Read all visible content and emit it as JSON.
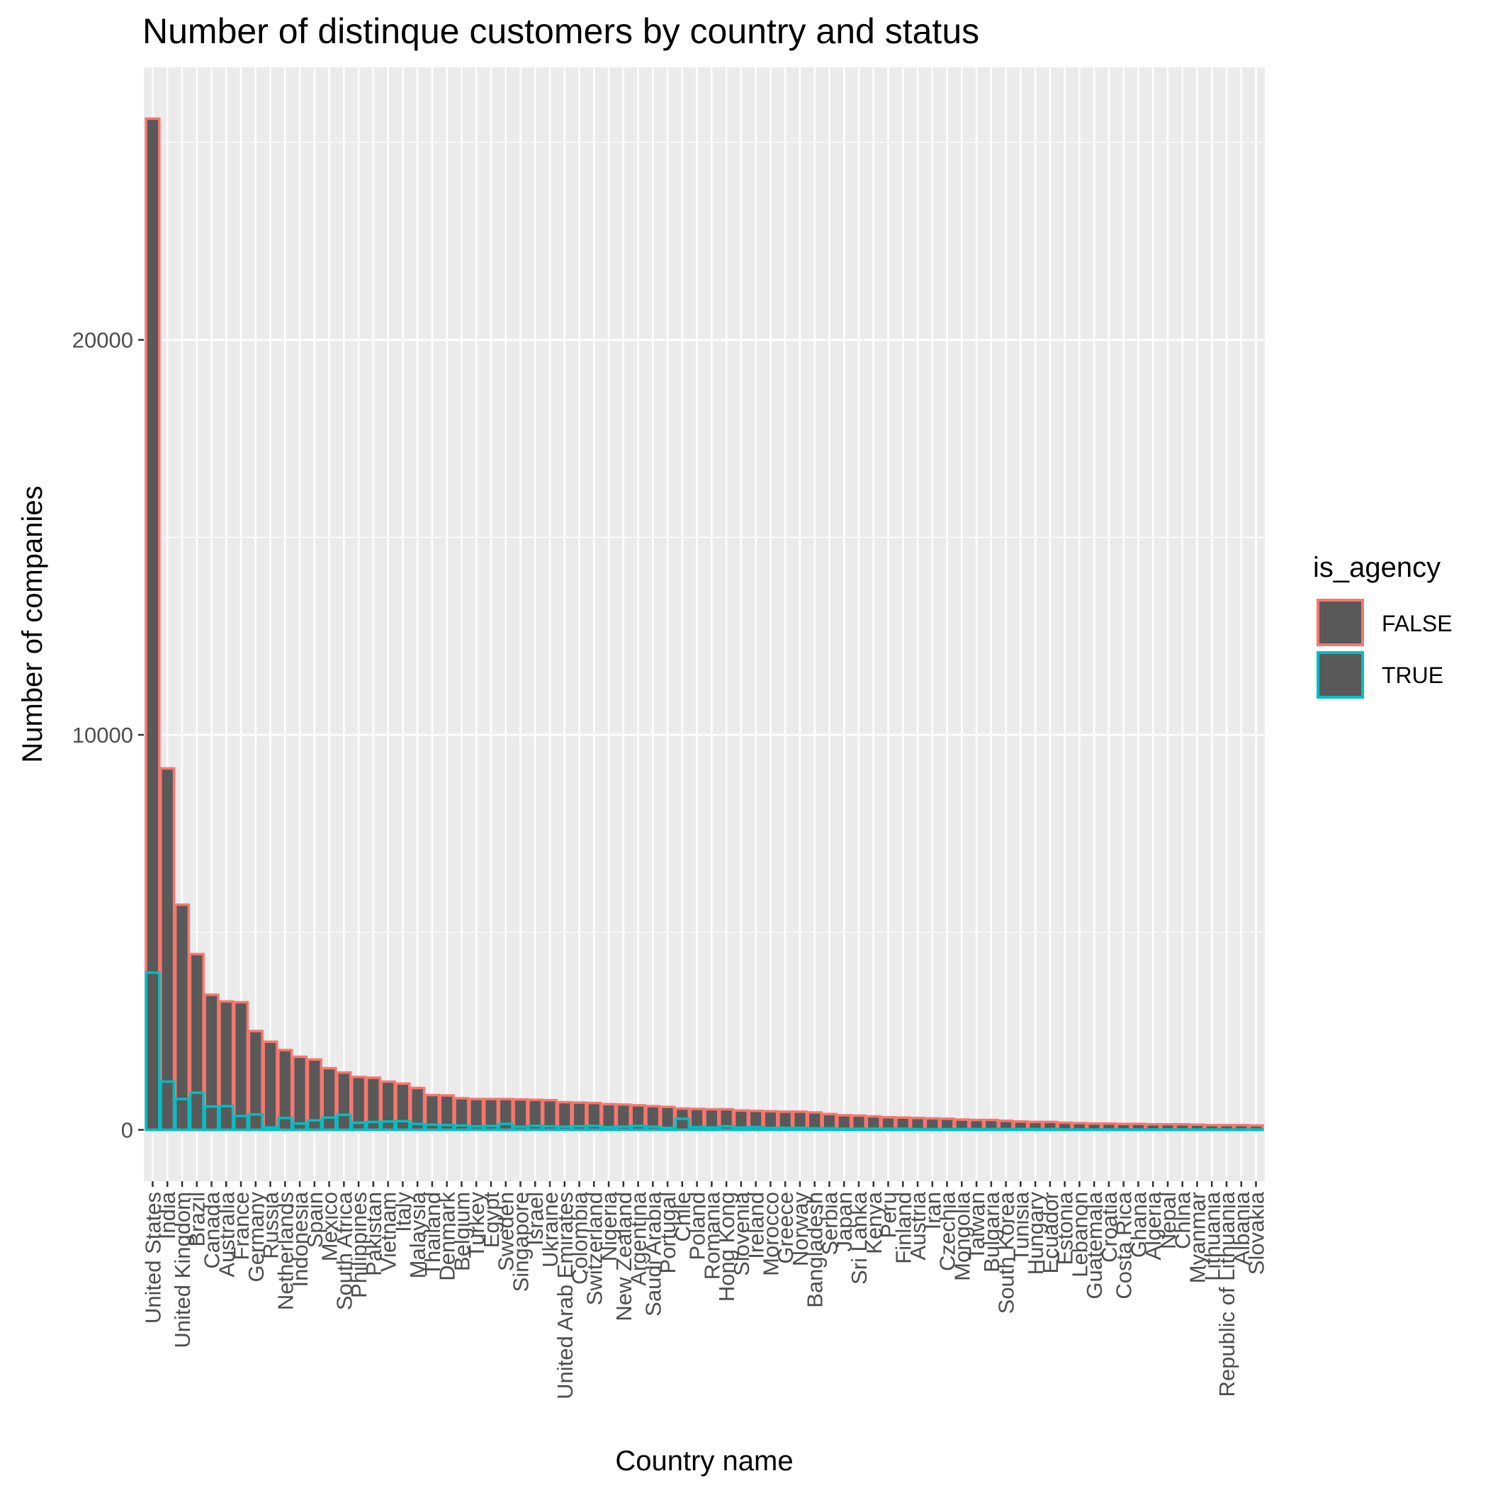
{
  "chart_data": {
    "type": "bar",
    "title": "Number of distinque customers by country and status",
    "xlabel": "Country name",
    "ylabel": "Number of companies",
    "ylim": [
      -1300,
      26900
    ],
    "yticks": [
      0,
      10000,
      20000
    ],
    "grid": true,
    "legend_position": "right",
    "legend_title": "is_agency",
    "categories": [
      "United States",
      "India",
      "United Kingdom",
      "Brazil",
      "Canada",
      "Australia",
      "France",
      "Germany",
      "Russia",
      "Netherlands",
      "Indonesia",
      "Spain",
      "Mexico",
      "South Africa",
      "Philippines",
      "Pakistan",
      "Vietnam",
      "Italy",
      "Malaysia",
      "Thailand",
      "Denmark",
      "Belgium",
      "Turkey",
      "Egypt",
      "Sweden",
      "Singapore",
      "Israel",
      "Ukraine",
      "United Arab Emirates",
      "Colombia",
      "Switzerland",
      "Nigeria",
      "New Zealand",
      "Argentina",
      "Saudi Arabia",
      "Portugal",
      "Chile",
      "Poland",
      "Romania",
      "Hong Kong",
      "Slovenia",
      "Ireland",
      "Morocco",
      "Greece",
      "Norway",
      "Bangladesh",
      "Serbia",
      "Japan",
      "Sri Lanka",
      "Kenya",
      "Peru",
      "Finland",
      "Austria",
      "Iran",
      "Czechia",
      "Mongolia",
      "Taiwan",
      "Bulgaria",
      "South Korea",
      "Tunisia",
      "Hungary",
      "Ecuador",
      "Estonia",
      "Lebanon",
      "Guatemala",
      "Croatia",
      "Costa Rica",
      "Ghana",
      "Algeria",
      "Nepal",
      "China",
      "Myanmar",
      "Lithuania",
      "Republic of Lithuania",
      "Albania",
      "Slovakia"
    ],
    "series": [
      {
        "name": "FALSE",
        "color": "#F8766D",
        "values": [
          25600,
          9150,
          5700,
          4450,
          3420,
          3250,
          3230,
          2500,
          2230,
          2020,
          1850,
          1780,
          1560,
          1450,
          1340,
          1320,
          1220,
          1170,
          1060,
          880,
          870,
          800,
          780,
          780,
          780,
          770,
          760,
          750,
          700,
          690,
          680,
          650,
          640,
          620,
          600,
          580,
          540,
          530,
          520,
          520,
          490,
          480,
          470,
          460,
          460,
          440,
          400,
          370,
          360,
          340,
          320,
          310,
          300,
          290,
          280,
          260,
          250,
          250,
          230,
          210,
          200,
          200,
          180,
          170,
          160,
          160,
          150,
          150,
          140,
          140,
          140,
          130,
          120,
          120,
          120,
          110
        ]
      },
      {
        "name": "TRUE",
        "color": "#00BFC4",
        "values": [
          3980,
          1220,
          780,
          940,
          590,
          600,
          350,
          390,
          60,
          300,
          160,
          240,
          310,
          380,
          180,
          200,
          210,
          220,
          150,
          130,
          120,
          110,
          90,
          100,
          150,
          80,
          100,
          90,
          80,
          90,
          100,
          70,
          80,
          100,
          80,
          50,
          280,
          70,
          60,
          90,
          60,
          70,
          50,
          50,
          50,
          40,
          40,
          30,
          30,
          30,
          30,
          30,
          20,
          20,
          20,
          20,
          20,
          20,
          20,
          20,
          20,
          20,
          10,
          10,
          10,
          10,
          10,
          10,
          10,
          10,
          10,
          10,
          10,
          10,
          10,
          10
        ]
      }
    ]
  }
}
